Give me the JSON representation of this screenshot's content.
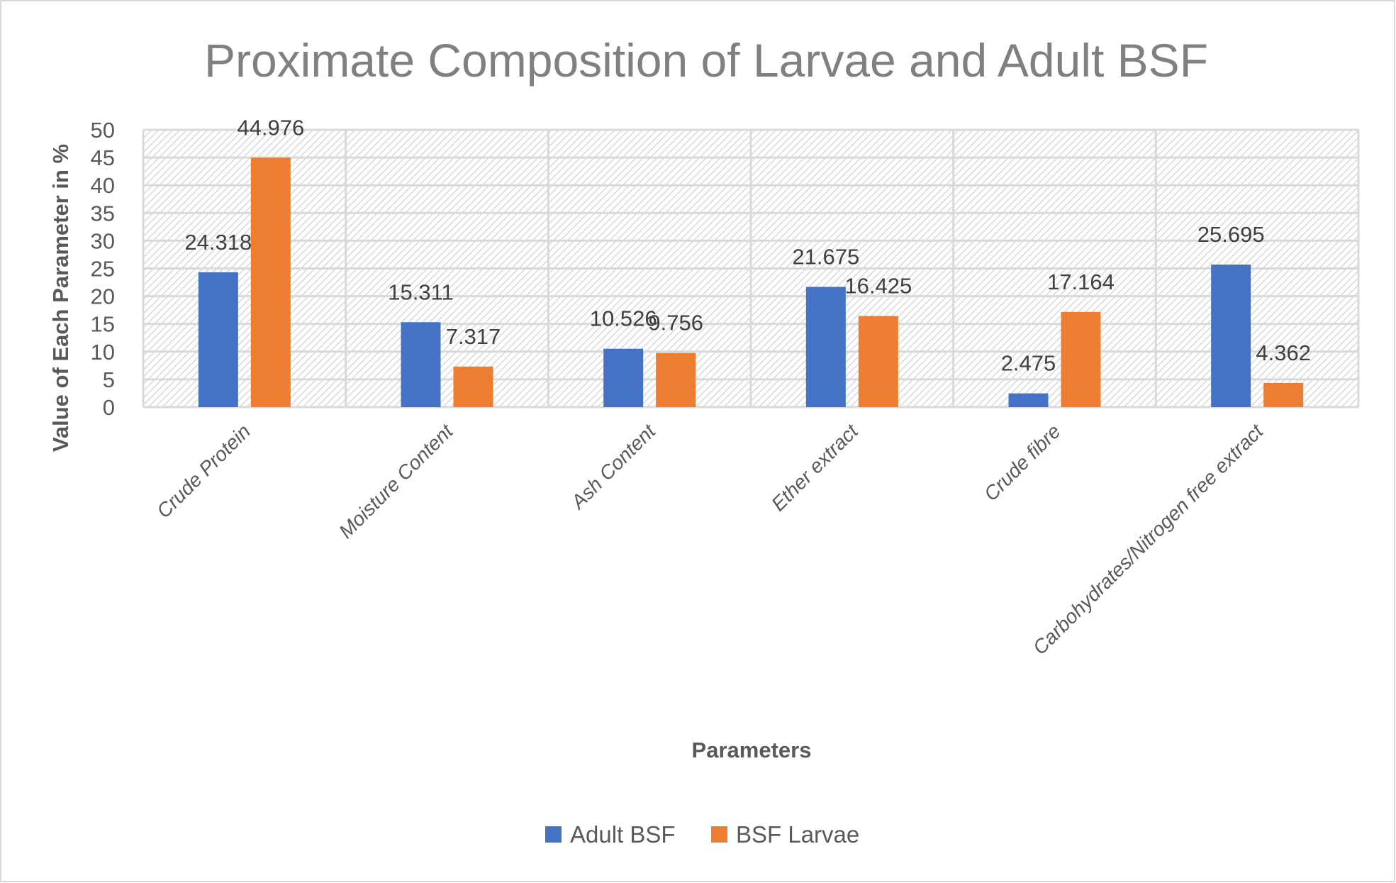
{
  "chart_data": {
    "type": "bar",
    "title": "Proximate Composition of Larvae and Adult BSF",
    "xlabel": "Parameters",
    "ylabel": "Value of Each Parameter in %",
    "ylim": [
      0,
      50
    ],
    "yticks": [
      0,
      5,
      10,
      15,
      20,
      25,
      30,
      35,
      40,
      45,
      50
    ],
    "grid": true,
    "legend_position": "bottom",
    "categories": [
      "Crude Protein",
      "Moisture Content",
      "Ash Content",
      "Ether extract",
      "Crude fibre",
      "Carbohydrates/Nitrogen free extract"
    ],
    "series": [
      {
        "name": "Adult BSF",
        "color": "#4472c4",
        "values": [
          24.318,
          15.311,
          10.526,
          21.675,
          2.475,
          25.695
        ],
        "labels": [
          "24.318",
          "15.311",
          "10.526",
          "21.675",
          "2.475",
          "25.695"
        ]
      },
      {
        "name": "BSF Larvae",
        "color": "#ed7d31",
        "values": [
          44.976,
          7.317,
          9.756,
          16.425,
          17.164,
          4.362
        ],
        "labels": [
          "44.976",
          "7.317",
          "9.756",
          "16.425",
          "17.164",
          "4.362"
        ]
      }
    ]
  }
}
